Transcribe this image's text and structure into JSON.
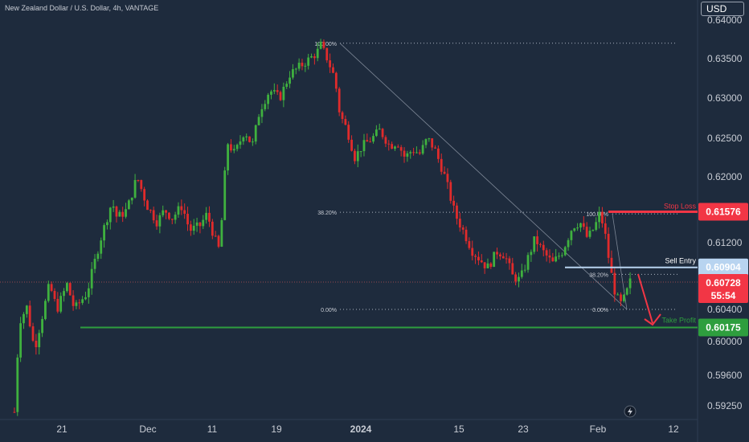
{
  "title": "New Zealand Dollar / U.S. Dollar, 4h, VANTAGE",
  "currency": "USD",
  "colors": {
    "background": "#1e2b3d",
    "up": "#3fb13f",
    "down": "#e02b2b",
    "stop": "#f23645",
    "entry": "#b8d4f0",
    "tp": "#2e9e3e",
    "price": "#f23645"
  },
  "levels": {
    "stop_loss": {
      "label": "Stop Loss",
      "value": "0.61576"
    },
    "sell_entry": {
      "label": "Sell Entry",
      "value": "0.60904"
    },
    "take_profit": {
      "label": "Take Profit",
      "value": "0.60175"
    }
  },
  "last_price": {
    "value": "0.60728",
    "countdown": "55:54"
  },
  "fib_labels": {
    "big_top": "100.00%",
    "big_382": "38.20%",
    "big_0": "0.00%",
    "small_top": "100.00%",
    "small_382": "38.20%",
    "small_0": "0.00%"
  },
  "tv_icon": "lightning-icon",
  "chart_data": {
    "type": "candlestick",
    "title": "New Zealand Dollar / U.S. Dollar, 4h, VANTAGE",
    "y_ticks": [
      "0.64000",
      "0.63500",
      "0.63000",
      "0.62500",
      "0.62000",
      "0.61200",
      "0.60400",
      "0.60000",
      "0.59600",
      "0.59250"
    ],
    "x_ticks": [
      "21",
      "Dec",
      "11",
      "19",
      "2024",
      "15",
      "23",
      "Feb",
      "12"
    ],
    "path": [
      [
        0,
        0.5918
      ],
      [
        4,
        0.6025
      ],
      [
        10,
        0.6043
      ],
      [
        16,
        0.599
      ],
      [
        22,
        0.603
      ],
      [
        28,
        0.607
      ],
      [
        34,
        0.604
      ],
      [
        42,
        0.607
      ],
      [
        48,
        0.604
      ],
      [
        58,
        0.606
      ],
      [
        68,
        0.612
      ],
      [
        78,
        0.617
      ],
      [
        82,
        0.615
      ],
      [
        90,
        0.616
      ],
      [
        98,
        0.62
      ],
      [
        106,
        0.6165
      ],
      [
        114,
        0.6145
      ],
      [
        120,
        0.616
      ],
      [
        126,
        0.615
      ],
      [
        134,
        0.6165
      ],
      [
        140,
        0.6135
      ],
      [
        148,
        0.614
      ],
      [
        154,
        0.6155
      ],
      [
        160,
        0.6125
      ],
      [
        164,
        0.611
      ],
      [
        170,
        0.6245
      ],
      [
        176,
        0.623
      ],
      [
        184,
        0.626
      ],
      [
        190,
        0.624
      ],
      [
        196,
        0.6285
      ],
      [
        204,
        0.631
      ],
      [
        212,
        0.63
      ],
      [
        220,
        0.633
      ],
      [
        228,
        0.634
      ],
      [
        236,
        0.635
      ],
      [
        242,
        0.6358
      ],
      [
        244,
        0.637
      ],
      [
        250,
        0.635
      ],
      [
        256,
        0.6325
      ],
      [
        260,
        0.628
      ],
      [
        266,
        0.626
      ],
      [
        272,
        0.6225
      ],
      [
        278,
        0.624
      ],
      [
        286,
        0.625
      ],
      [
        292,
        0.626
      ],
      [
        300,
        0.624
      ],
      [
        306,
        0.6245
      ],
      [
        312,
        0.6225
      ],
      [
        318,
        0.6235
      ],
      [
        324,
        0.623
      ],
      [
        330,
        0.625
      ],
      [
        336,
        0.6235
      ],
      [
        344,
        0.62
      ],
      [
        352,
        0.6155
      ],
      [
        360,
        0.613
      ],
      [
        366,
        0.611
      ],
      [
        372,
        0.61
      ],
      [
        378,
        0.609
      ],
      [
        386,
        0.611
      ],
      [
        392,
        0.6105
      ],
      [
        398,
        0.608
      ],
      [
        404,
        0.6075
      ],
      [
        410,
        0.61
      ],
      [
        416,
        0.6125
      ],
      [
        422,
        0.611
      ],
      [
        430,
        0.6095
      ],
      [
        438,
        0.611
      ],
      [
        446,
        0.614
      ],
      [
        452,
        0.6145
      ],
      [
        458,
        0.6125
      ],
      [
        464,
        0.614
      ],
      [
        468,
        0.6157
      ],
      [
        472,
        0.613
      ],
      [
        476,
        0.609
      ],
      [
        480,
        0.606
      ],
      [
        484,
        0.6045
      ],
      [
        488,
        0.6055
      ],
      [
        492,
        0.6073
      ]
    ],
    "projection": [
      [
        0.6073
      ],
      [
        0.605
      ],
      [
        0.6017
      ]
    ]
  }
}
